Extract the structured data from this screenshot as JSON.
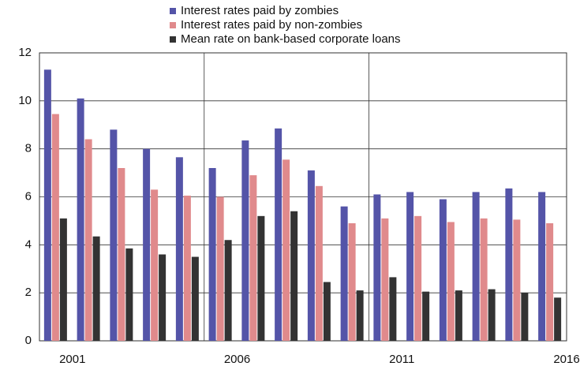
{
  "chart_data": {
    "type": "bar",
    "categories": [
      "2001",
      null,
      null,
      null,
      null,
      "2006",
      null,
      null,
      null,
      null,
      "2011",
      null,
      null,
      null,
      null,
      "2016"
    ],
    "series": [
      {
        "name": "Interest rates paid by zombies",
        "color": "#5454a8",
        "values": [
          11.3,
          10.1,
          8.8,
          8.0,
          7.65,
          7.2,
          8.35,
          8.85,
          7.1,
          5.6,
          6.1,
          6.2,
          5.9,
          6.2,
          6.35,
          6.2
        ]
      },
      {
        "name": "Interest rates paid by non-zombies",
        "color": "#e08a8c",
        "values": [
          9.45,
          8.4,
          7.2,
          6.3,
          6.05,
          6.0,
          6.9,
          7.55,
          6.45,
          4.9,
          5.1,
          5.2,
          4.95,
          5.1,
          5.05,
          4.9
        ]
      },
      {
        "name": "Mean rate on bank-based corporate loans",
        "color": "#333333",
        "values": [
          5.1,
          4.35,
          3.85,
          3.6,
          3.5,
          4.2,
          5.2,
          5.4,
          2.45,
          2.1,
          2.65,
          2.05,
          2.1,
          2.15,
          2.0,
          1.8
        ]
      }
    ],
    "ylim": [
      0,
      12
    ],
    "yticks": [
      0,
      2,
      4,
      6,
      8,
      10,
      12
    ],
    "grid": true,
    "legend": "top"
  }
}
